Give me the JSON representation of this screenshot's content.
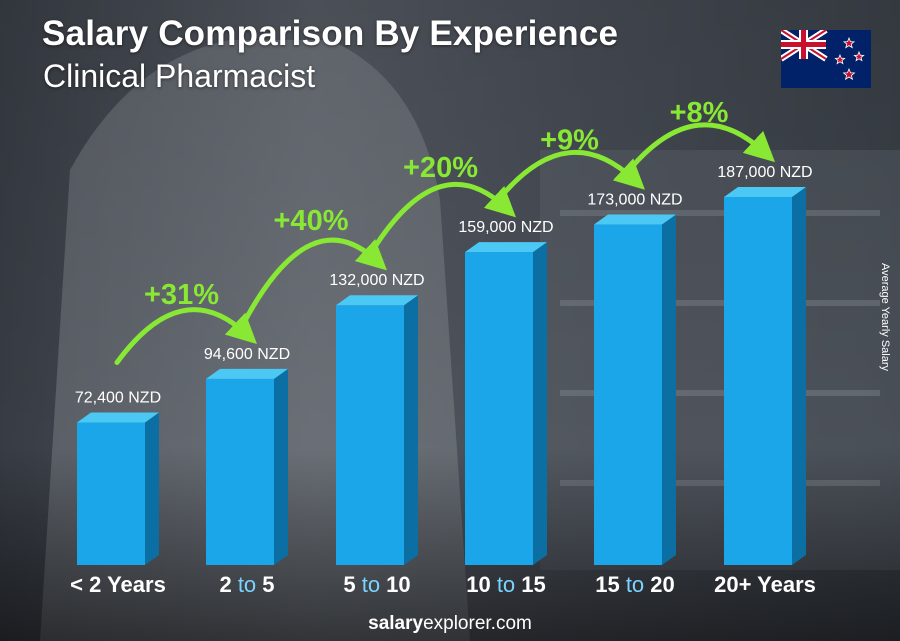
{
  "header": {
    "title": "Salary Comparison By Experience",
    "subtitle": "Clinical Pharmacist"
  },
  "flag_icon": "new-zealand-flag-icon",
  "y_axis_label": "Average Yearly Salary",
  "footer": {
    "brand_bold": "salary",
    "brand_rest": "explorer.com"
  },
  "colors": {
    "bar_front": "#1aa6e8",
    "bar_side": "#0c6fa3",
    "bar_top": "#4cc8f5",
    "increase": "#88e833",
    "category_text": "#ffffff",
    "category_accent": "#7ad4ff"
  },
  "chart_data": {
    "type": "bar",
    "categories": [
      {
        "parts": [
          "< 2 Years"
        ]
      },
      {
        "parts": [
          "2",
          " to ",
          "5"
        ]
      },
      {
        "parts": [
          "5",
          " to ",
          "10"
        ]
      },
      {
        "parts": [
          "10",
          " to ",
          "15"
        ]
      },
      {
        "parts": [
          "15",
          " to ",
          "20"
        ]
      },
      {
        "parts": [
          "20+ Years"
        ]
      }
    ],
    "category_labels": [
      "< 2 Years",
      "2 to 5",
      "5 to 10",
      "10 to 15",
      "15 to 20",
      "20+ Years"
    ],
    "values": [
      72400,
      94600,
      132000,
      159000,
      173000,
      187000
    ],
    "value_labels": [
      "72,400 NZD",
      "94,600 NZD",
      "132,000 NZD",
      "159,000 NZD",
      "173,000 NZD",
      "187,000 NZD"
    ],
    "increases": [
      "+31%",
      "+40%",
      "+20%",
      "+9%",
      "+8%"
    ],
    "ylabel": "Average Yearly Salary",
    "ylim": [
      0,
      187000
    ]
  }
}
